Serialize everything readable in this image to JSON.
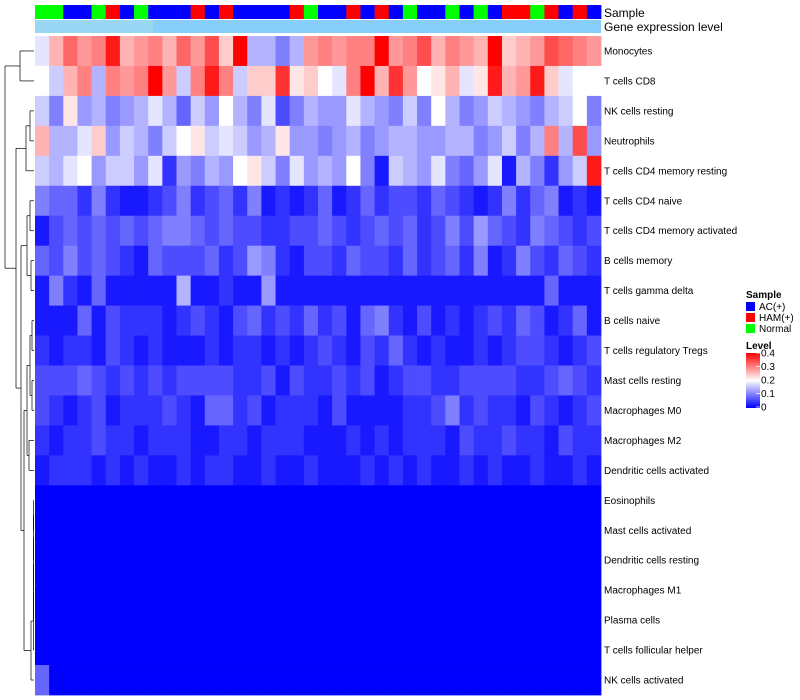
{
  "chart_data": {
    "type": "heatmap",
    "title": "",
    "annotations": {
      "sample_label": "Sample",
      "expression_label": "Gene expression level"
    },
    "colors": {
      "low": "#0000FF",
      "mid": "#FFFFFF",
      "high": "#FF0000",
      "expr_bar_fill": "#87CEFA",
      "expr_bar_end": "#9AD7F5",
      "group_colors": {
        "AC(+)": "#0000FF",
        "HAM(+)": "#FF0000",
        "Normal": "#00FF00"
      }
    },
    "rows": [
      "Monocytes",
      "T cells CD8",
      "NK cells resting",
      "Neutrophils",
      "T cells CD4 memory resting",
      "T cells CD4 naive",
      "T cells CD4 memory activated",
      "B cells memory",
      "T cells gamma delta",
      "B cells naive",
      "T cells regulatory  Tregs",
      "Mast cells resting",
      "Macrophages M0",
      "Macrophages M2",
      "Dendritic cells activated",
      "Eosinophils",
      "Mast cells activated",
      "Dendritic cells resting",
      "Macrophages M1",
      "Plasma cells",
      "T cells follicular helper",
      "NK cells activated"
    ],
    "sample_groups": [
      "Normal",
      "Normal",
      "AC(+)",
      "AC(+)",
      "Normal",
      "HAM(+)",
      "AC(+)",
      "Normal",
      "AC(+)",
      "AC(+)",
      "AC(+)",
      "HAM(+)",
      "AC(+)",
      "HAM(+)",
      "AC(+)",
      "AC(+)",
      "AC(+)",
      "AC(+)",
      "HAM(+)",
      "Normal",
      "AC(+)",
      "AC(+)",
      "HAM(+)",
      "AC(+)",
      "HAM(+)",
      "AC(+)",
      "Normal",
      "AC(+)",
      "AC(+)",
      "Normal",
      "AC(+)",
      "Normal",
      "AC(+)",
      "HAM(+)",
      "HAM(+)",
      "Normal",
      "HAM(+)",
      "AC(+)",
      "HAM(+)",
      "AC(+)"
    ],
    "values": [
      [
        0.18,
        0.26,
        0.32,
        0.28,
        0.3,
        0.38,
        0.26,
        0.28,
        0.3,
        0.26,
        0.32,
        0.28,
        0.34,
        0.24,
        0.4,
        0.14,
        0.14,
        0.1,
        0.14,
        0.28,
        0.3,
        0.28,
        0.3,
        0.3,
        0.4,
        0.28,
        0.3,
        0.34,
        0.26,
        0.3,
        0.28,
        0.26,
        0.4,
        0.24,
        0.26,
        0.28,
        0.34,
        0.32,
        0.3,
        0.28
      ],
      [
        0.2,
        0.16,
        0.26,
        0.3,
        0.14,
        0.3,
        0.28,
        0.3,
        0.4,
        0.28,
        0.16,
        0.3,
        0.38,
        0.3,
        0.16,
        0.24,
        0.24,
        0.36,
        0.22,
        0.24,
        0.2,
        0.18,
        0.3,
        0.4,
        0.26,
        0.36,
        0.28,
        0.2,
        0.22,
        0.26,
        0.18,
        0.22,
        0.38,
        0.26,
        0.28,
        0.38,
        0.24,
        0.18,
        0.2,
        0.2
      ],
      [
        0.16,
        0.1,
        0.22,
        0.12,
        0.14,
        0.1,
        0.12,
        0.14,
        0.18,
        0.14,
        0.08,
        0.16,
        0.12,
        0.2,
        0.14,
        0.1,
        0.18,
        0.06,
        0.1,
        0.14,
        0.12,
        0.12,
        0.18,
        0.14,
        0.12,
        0.1,
        0.16,
        0.1,
        0.2,
        0.14,
        0.1,
        0.12,
        0.16,
        0.14,
        0.12,
        0.1,
        0.14,
        0.16,
        0.2,
        0.1
      ],
      [
        0.26,
        0.14,
        0.14,
        0.18,
        0.24,
        0.12,
        0.16,
        0.14,
        0.1,
        0.16,
        0.2,
        0.22,
        0.16,
        0.18,
        0.16,
        0.12,
        0.14,
        0.22,
        0.12,
        0.12,
        0.1,
        0.12,
        0.14,
        0.1,
        0.12,
        0.14,
        0.14,
        0.12,
        0.12,
        0.14,
        0.14,
        0.1,
        0.12,
        0.16,
        0.1,
        0.14,
        0.3,
        0.14,
        0.34,
        0.12
      ],
      [
        0.16,
        0.14,
        0.18,
        0.2,
        0.12,
        0.16,
        0.16,
        0.12,
        0.18,
        0.04,
        0.12,
        0.1,
        0.14,
        0.12,
        0.2,
        0.22,
        0.16,
        0.1,
        0.18,
        0.12,
        0.14,
        0.12,
        0.2,
        0.1,
        0.02,
        0.16,
        0.14,
        0.12,
        0.18,
        0.1,
        0.08,
        0.12,
        0.18,
        0.02,
        0.14,
        0.1,
        0.04,
        0.12,
        0.16,
        0.38
      ],
      [
        0.1,
        0.08,
        0.08,
        0.04,
        0.1,
        0.04,
        0.02,
        0.02,
        0.04,
        0.06,
        0.1,
        0.04,
        0.06,
        0.08,
        0.04,
        0.1,
        0.02,
        0.04,
        0.02,
        0.04,
        0.08,
        0.02,
        0.04,
        0.08,
        0.04,
        0.06,
        0.06,
        0.04,
        0.08,
        0.06,
        0.04,
        0.02,
        0.04,
        0.1,
        0.04,
        0.08,
        0.1,
        0.02,
        0.04,
        0.02
      ],
      [
        0.02,
        0.06,
        0.08,
        0.06,
        0.08,
        0.06,
        0.08,
        0.06,
        0.08,
        0.1,
        0.1,
        0.08,
        0.06,
        0.08,
        0.06,
        0.06,
        0.04,
        0.04,
        0.06,
        0.06,
        0.08,
        0.06,
        0.04,
        0.06,
        0.08,
        0.06,
        0.08,
        0.04,
        0.06,
        0.1,
        0.06,
        0.12,
        0.08,
        0.06,
        0.04,
        0.1,
        0.08,
        0.06,
        0.04,
        0.06
      ],
      [
        0.08,
        0.06,
        0.1,
        0.06,
        0.08,
        0.06,
        0.04,
        0.02,
        0.08,
        0.06,
        0.06,
        0.06,
        0.08,
        0.04,
        0.06,
        0.12,
        0.1,
        0.04,
        0.02,
        0.06,
        0.06,
        0.04,
        0.08,
        0.06,
        0.06,
        0.04,
        0.08,
        0.04,
        0.06,
        0.08,
        0.04,
        0.1,
        0.02,
        0.04,
        0.1,
        0.06,
        0.04,
        0.08,
        0.06,
        0.04
      ],
      [
        0.02,
        0.1,
        0.04,
        0.02,
        0.08,
        0.02,
        0.02,
        0.02,
        0.02,
        0.02,
        0.14,
        0.02,
        0.02,
        0.04,
        0.02,
        0.02,
        0.12,
        0.02,
        0.02,
        0.02,
        0.02,
        0.02,
        0.02,
        0.02,
        0.02,
        0.02,
        0.02,
        0.02,
        0.02,
        0.02,
        0.02,
        0.02,
        0.02,
        0.02,
        0.02,
        0.02,
        0.08,
        0.02,
        0.02,
        0.02
      ],
      [
        0.02,
        0.02,
        0.02,
        0.08,
        0.02,
        0.06,
        0.04,
        0.04,
        0.04,
        0.02,
        0.04,
        0.06,
        0.04,
        0.02,
        0.06,
        0.08,
        0.04,
        0.06,
        0.04,
        0.08,
        0.04,
        0.06,
        0.02,
        0.08,
        0.1,
        0.04,
        0.02,
        0.06,
        0.02,
        0.04,
        0.02,
        0.04,
        0.06,
        0.04,
        0.08,
        0.06,
        0.02,
        0.04,
        0.08,
        0.02
      ],
      [
        0.04,
        0.02,
        0.04,
        0.04,
        0.02,
        0.06,
        0.04,
        0.02,
        0.04,
        0.02,
        0.02,
        0.02,
        0.04,
        0.02,
        0.04,
        0.04,
        0.02,
        0.04,
        0.02,
        0.04,
        0.06,
        0.04,
        0.02,
        0.06,
        0.04,
        0.08,
        0.04,
        0.02,
        0.04,
        0.02,
        0.02,
        0.04,
        0.02,
        0.04,
        0.06,
        0.06,
        0.04,
        0.02,
        0.04,
        0.06
      ],
      [
        0.06,
        0.06,
        0.06,
        0.08,
        0.06,
        0.04,
        0.06,
        0.04,
        0.06,
        0.04,
        0.06,
        0.06,
        0.06,
        0.06,
        0.04,
        0.04,
        0.06,
        0.02,
        0.06,
        0.04,
        0.04,
        0.06,
        0.04,
        0.06,
        0.02,
        0.04,
        0.06,
        0.06,
        0.04,
        0.04,
        0.06,
        0.06,
        0.06,
        0.06,
        0.04,
        0.04,
        0.06,
        0.08,
        0.06,
        0.04
      ],
      [
        0.06,
        0.04,
        0.02,
        0.04,
        0.06,
        0.02,
        0.04,
        0.04,
        0.04,
        0.06,
        0.04,
        0.02,
        0.08,
        0.08,
        0.04,
        0.06,
        0.02,
        0.04,
        0.04,
        0.04,
        0.02,
        0.06,
        0.02,
        0.02,
        0.02,
        0.02,
        0.04,
        0.04,
        0.06,
        0.1,
        0.04,
        0.06,
        0.04,
        0.04,
        0.02,
        0.06,
        0.04,
        0.02,
        0.04,
        0.06
      ],
      [
        0.04,
        0.02,
        0.04,
        0.04,
        0.06,
        0.04,
        0.04,
        0.02,
        0.04,
        0.04,
        0.04,
        0.02,
        0.02,
        0.04,
        0.04,
        0.02,
        0.04,
        0.04,
        0.04,
        0.02,
        0.02,
        0.02,
        0.04,
        0.02,
        0.04,
        0.02,
        0.04,
        0.04,
        0.04,
        0.02,
        0.06,
        0.04,
        0.04,
        0.06,
        0.04,
        0.04,
        0.02,
        0.06,
        0.04,
        0.04
      ],
      [
        0.02,
        0.04,
        0.04,
        0.04,
        0.02,
        0.04,
        0.02,
        0.04,
        0.02,
        0.02,
        0.04,
        0.02,
        0.04,
        0.04,
        0.02,
        0.02,
        0.04,
        0.02,
        0.02,
        0.04,
        0.02,
        0.02,
        0.02,
        0.04,
        0.02,
        0.04,
        0.02,
        0.04,
        0.02,
        0.02,
        0.04,
        0.02,
        0.04,
        0.02,
        0.02,
        0.04,
        0.02,
        0.02,
        0.04,
        0.02
      ],
      [
        0,
        0,
        0,
        0,
        0,
        0,
        0,
        0,
        0,
        0,
        0,
        0,
        0,
        0,
        0,
        0,
        0,
        0,
        0,
        0,
        0,
        0,
        0,
        0,
        0,
        0,
        0,
        0,
        0,
        0,
        0,
        0,
        0,
        0,
        0,
        0,
        0,
        0,
        0,
        0
      ],
      [
        0,
        0,
        0,
        0,
        0,
        0,
        0,
        0,
        0,
        0,
        0,
        0,
        0,
        0,
        0,
        0,
        0,
        0,
        0,
        0,
        0,
        0,
        0,
        0,
        0,
        0,
        0,
        0,
        0,
        0,
        0,
        0,
        0,
        0,
        0,
        0,
        0,
        0,
        0,
        0
      ],
      [
        0,
        0,
        0,
        0,
        0,
        0,
        0,
        0,
        0,
        0,
        0,
        0,
        0,
        0,
        0,
        0,
        0,
        0,
        0,
        0,
        0,
        0,
        0,
        0,
        0,
        0,
        0,
        0,
        0,
        0,
        0,
        0,
        0,
        0,
        0,
        0,
        0,
        0,
        0,
        0
      ],
      [
        0,
        0,
        0,
        0,
        0,
        0,
        0,
        0,
        0,
        0,
        0,
        0,
        0,
        0,
        0,
        0,
        0,
        0,
        0,
        0,
        0,
        0,
        0,
        0,
        0,
        0,
        0,
        0,
        0,
        0,
        0,
        0,
        0,
        0,
        0,
        0,
        0,
        0,
        0,
        0
      ],
      [
        0,
        0,
        0,
        0,
        0,
        0,
        0,
        0,
        0,
        0,
        0,
        0,
        0,
        0,
        0,
        0,
        0,
        0,
        0,
        0,
        0,
        0,
        0,
        0,
        0,
        0,
        0,
        0,
        0,
        0,
        0,
        0,
        0,
        0,
        0,
        0,
        0,
        0,
        0,
        0
      ],
      [
        0,
        0,
        0,
        0,
        0,
        0,
        0,
        0,
        0,
        0,
        0,
        0,
        0,
        0,
        0,
        0,
        0,
        0,
        0,
        0,
        0,
        0,
        0,
        0,
        0,
        0,
        0,
        0,
        0,
        0,
        0,
        0,
        0,
        0,
        0,
        0,
        0,
        0,
        0,
        0
      ],
      [
        0.08,
        0,
        0,
        0,
        0,
        0,
        0,
        0,
        0,
        0,
        0,
        0,
        0,
        0,
        0,
        0,
        0,
        0,
        0,
        0,
        0,
        0,
        0,
        0,
        0,
        0,
        0,
        0,
        0,
        0,
        0,
        0,
        0,
        0,
        0,
        0,
        0,
        0,
        0,
        0
      ]
    ],
    "legend": {
      "sample_title": "Sample",
      "sample_entries": [
        "AC(+)",
        "HAM(+)",
        "Normal"
      ],
      "level_title": "Level",
      "level_range": [
        0,
        0.4
      ],
      "level_ticks": [
        "0.4",
        "0.3",
        "0.2",
        "0.1",
        "0"
      ]
    }
  }
}
